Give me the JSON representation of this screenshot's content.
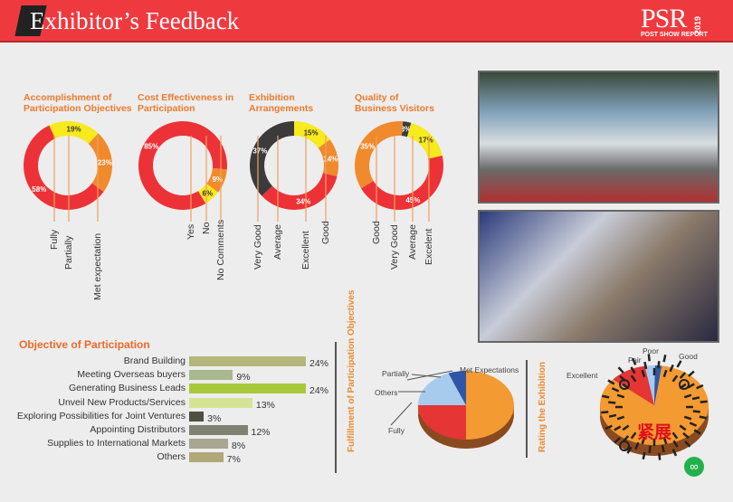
{
  "header": {
    "title": "Exhibitor’s Feedback",
    "brand": "PSR",
    "brand_year": "2019",
    "brand_sub": "POST SHOW REPORT"
  },
  "colors": {
    "red": "#ec3237",
    "yellow": "#f7ea1d",
    "orange": "#f08a2c",
    "dark": "#3b3b3b",
    "accent": "#ec7a2e"
  },
  "chart_data": [
    {
      "type": "pie",
      "title": "Accomplishment of Participation Objectives",
      "labels": [
        "Partially",
        "Met expectation",
        "Fully"
      ],
      "values": [
        19,
        23,
        58
      ],
      "colors": [
        "#f7ea1d",
        "#f08a2c",
        "#ec3237"
      ],
      "value_labels": [
        "19%",
        "23%",
        "58%"
      ],
      "start": -25
    },
    {
      "type": "pie",
      "title": "Cost Effectiveness in Participation",
      "labels": [
        "No Comments",
        "No",
        "Yes"
      ],
      "values": [
        9,
        6,
        85
      ],
      "colors": [
        "#f08a2c",
        "#f7ea1d",
        "#ec3237"
      ],
      "value_labels": [
        "9%",
        "6%",
        "85%"
      ],
      "start": 95
    },
    {
      "type": "pie",
      "title": "Exhibition Arrangements",
      "labels": [
        "Excellent",
        "Good",
        "Very Good",
        "Average"
      ],
      "values": [
        15,
        14,
        34,
        37
      ],
      "colors": [
        "#f7ea1d",
        "#f08a2c",
        "#ec3237",
        "#3b3b3b"
      ],
      "value_labels": [
        "15%",
        "14%",
        "34%",
        "37%"
      ],
      "start": 0
    },
    {
      "type": "pie",
      "title": "Quality of Business Visitors",
      "labels": [
        "Average",
        "Excelent",
        "Very Good",
        "Good"
      ],
      "values": [
        3,
        17,
        45,
        35
      ],
      "colors": [
        "#3b3b3b",
        "#f7ea1d",
        "#ec3237",
        "#f08a2c"
      ],
      "value_labels": [
        "3%",
        "17%",
        "45%",
        "35%"
      ],
      "start": 5
    },
    {
      "type": "bar",
      "title": "Objective of Participation",
      "categories": [
        "Brand Building",
        "Meeting Overseas buyers",
        "Generating Business Leads",
        "Unveil New Products/Services",
        "Exploring Possibilities for Joint Ventures",
        "Appointing Distributors",
        "Supplies to International Markets",
        "Others"
      ],
      "values": [
        24,
        9,
        24,
        13,
        3,
        12,
        8,
        7
      ],
      "value_labels": [
        "24%",
        "9%",
        "24%",
        "13%",
        "3%",
        "12%",
        "8%",
        "7%"
      ],
      "colors": [
        "#b3b87a",
        "#a8b890",
        "#a8c83c",
        "#d4e494",
        "#4f4f44",
        "#7f8270",
        "#a8a690",
        "#b0a878"
      ]
    },
    {
      "type": "pie",
      "title": "Fulfillment of Participation Objectives",
      "labels": [
        "Met Expectations",
        "Fully",
        "Others",
        "Partially"
      ],
      "values": [
        50,
        25,
        19,
        6
      ],
      "colors": [
        "#f39a33",
        "#e53535",
        "#a6cbec",
        "#2f56a6"
      ]
    },
    {
      "type": "pie",
      "title": "Rating the Exhibition",
      "labels": [
        "Good",
        "Excellent",
        "Fair",
        "Poor"
      ],
      "values": [
        84,
        11,
        3,
        2
      ],
      "colors": [
        "#f39a33",
        "#e53535",
        "#a6cbec",
        "#2f56a6"
      ]
    }
  ],
  "donut_labels": [
    [
      "Fully",
      "Partially",
      "Met expectation"
    ],
    [
      "Yes",
      "No",
      "No Comments"
    ],
    [
      "Very Good",
      "Average",
      "Excellent",
      "Good"
    ],
    [
      "Good",
      "Very Good",
      "Average",
      "Excelent"
    ]
  ],
  "qr_text": "紧展"
}
